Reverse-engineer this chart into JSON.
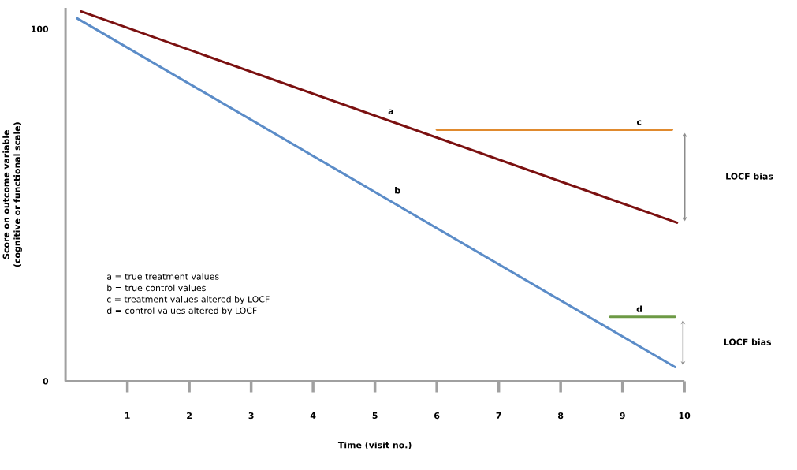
{
  "chart_data": {
    "type": "line",
    "xlabel": "Time (visit no.)",
    "ylabel": "Score on outcome variable (cognitive or functional scale)",
    "xlim": [
      0,
      10
    ],
    "ylim": [
      0,
      106
    ],
    "xticks": [
      1,
      2,
      3,
      4,
      5,
      6,
      7,
      8,
      9,
      10
    ],
    "yticks": [
      0,
      100
    ],
    "grid": false,
    "series": [
      {
        "name": "a",
        "color": "#7b1010",
        "x": [
          0.25,
          9.88
        ],
        "values": [
          105,
          45
        ]
      },
      {
        "name": "b",
        "color": "#5b8cc8",
        "x": [
          0.19,
          9.85
        ],
        "values": [
          103,
          4
        ]
      },
      {
        "name": "c",
        "color": "#e08a2e",
        "x": [
          6.0,
          9.8
        ],
        "values": [
          71.4,
          71.4
        ]
      },
      {
        "name": "d",
        "color": "#6d9a45",
        "x": [
          8.8,
          9.85
        ],
        "values": [
          18.3,
          18.3
        ]
      }
    ],
    "annotations": [
      "a = true treatment values",
      "b = true control values",
      "c = treatment values altered by LOCF",
      "d = control values altered by LOCF",
      "LOCF bias",
      "LOCF bias"
    ]
  }
}
